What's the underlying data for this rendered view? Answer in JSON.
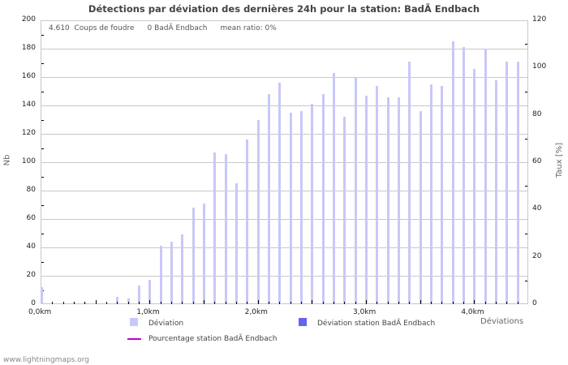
{
  "title": "Détections par déviation des dernières 24h pour la station: BadÃ Endbach",
  "info": {
    "strikes": "4.610  Coups de foudre",
    "station_count": "0 BadÃ Endbach",
    "mean_ratio": "mean ratio: 0%"
  },
  "axes": {
    "y_left_label": "Nb",
    "y_right_label": "Taux [%]",
    "x_label": "Déviations",
    "y_left_ticks": [
      "0",
      "20",
      "40",
      "60",
      "80",
      "100",
      "120",
      "140",
      "160",
      "180",
      "200"
    ],
    "y_right_ticks": [
      "0",
      "20",
      "40",
      "60",
      "80",
      "100",
      "120"
    ],
    "x_ticks": [
      "0,0km",
      "1,0km",
      "2,0km",
      "3,0km",
      "4,0km"
    ]
  },
  "legend": {
    "deviation": "Déviation",
    "deviation_station": "Déviation station BadÃ Endbach",
    "percentage_station": "Pourcentage station BadÃ Endbach"
  },
  "colors": {
    "deviation": "#c8c8f8",
    "deviation_station": "#6464f0",
    "percentage_station": "#c800c8"
  },
  "footer": "www.lightningmaps.org",
  "chart_data": {
    "type": "bar",
    "title": "Détections par déviation des dernières 24h pour la station: BadÃ Endbach",
    "xlabel": "Déviations",
    "ylabel": "Nb",
    "y2label": "Taux [%]",
    "ylim": [
      0,
      200
    ],
    "y2lim": [
      0,
      120
    ],
    "grid": true,
    "legend_position": "bottom",
    "categories": [
      "0.0km",
      "0.1km",
      "0.2km",
      "0.3km",
      "0.4km",
      "0.5km",
      "0.6km",
      "0.7km",
      "0.8km",
      "0.9km",
      "1.0km",
      "1.1km",
      "1.2km",
      "1.3km",
      "1.4km",
      "1.5km",
      "1.6km",
      "1.7km",
      "1.8km",
      "1.9km",
      "2.0km",
      "2.1km",
      "2.2km",
      "2.3km",
      "2.4km",
      "2.5km",
      "2.6km",
      "2.7km",
      "2.8km",
      "2.9km",
      "3.0km",
      "3.1km",
      "3.2km",
      "3.3km",
      "3.4km",
      "3.5km",
      "3.6km",
      "3.7km",
      "3.8km",
      "3.9km",
      "4.0km",
      "4.1km",
      "4.2km",
      "4.3km",
      "4.4km"
    ],
    "series": [
      {
        "name": "Déviation",
        "values": [
          12,
          0,
          0,
          1,
          1,
          0,
          0,
          5,
          4,
          13,
          17,
          41,
          44,
          49,
          68,
          71,
          107,
          106,
          85,
          116,
          130,
          148,
          156,
          135,
          136,
          141,
          148,
          163,
          132,
          160,
          147,
          154,
          146,
          146,
          171,
          136,
          155,
          154,
          185,
          181,
          166,
          180,
          158,
          171,
          171
        ]
      },
      {
        "name": "Déviation station BadÃ Endbach",
        "values": [
          0,
          0,
          0,
          0,
          0,
          0,
          0,
          0,
          0,
          0,
          0,
          0,
          0,
          0,
          0,
          0,
          0,
          0,
          0,
          0,
          0,
          0,
          0,
          0,
          0,
          0,
          0,
          0,
          0,
          0,
          0,
          0,
          0,
          0,
          0,
          0,
          0,
          0,
          0,
          0,
          0,
          0,
          0,
          0,
          0
        ]
      },
      {
        "name": "Pourcentage station BadÃ Endbach",
        "values": [
          0,
          0,
          0,
          0,
          0,
          0,
          0,
          0,
          0,
          0,
          0,
          0,
          0,
          0,
          0,
          0,
          0,
          0,
          0,
          0,
          0,
          0,
          0,
          0,
          0,
          0,
          0,
          0,
          0,
          0,
          0,
          0,
          0,
          0,
          0,
          0,
          0,
          0,
          0,
          0,
          0,
          0,
          0,
          0,
          0
        ]
      }
    ]
  }
}
